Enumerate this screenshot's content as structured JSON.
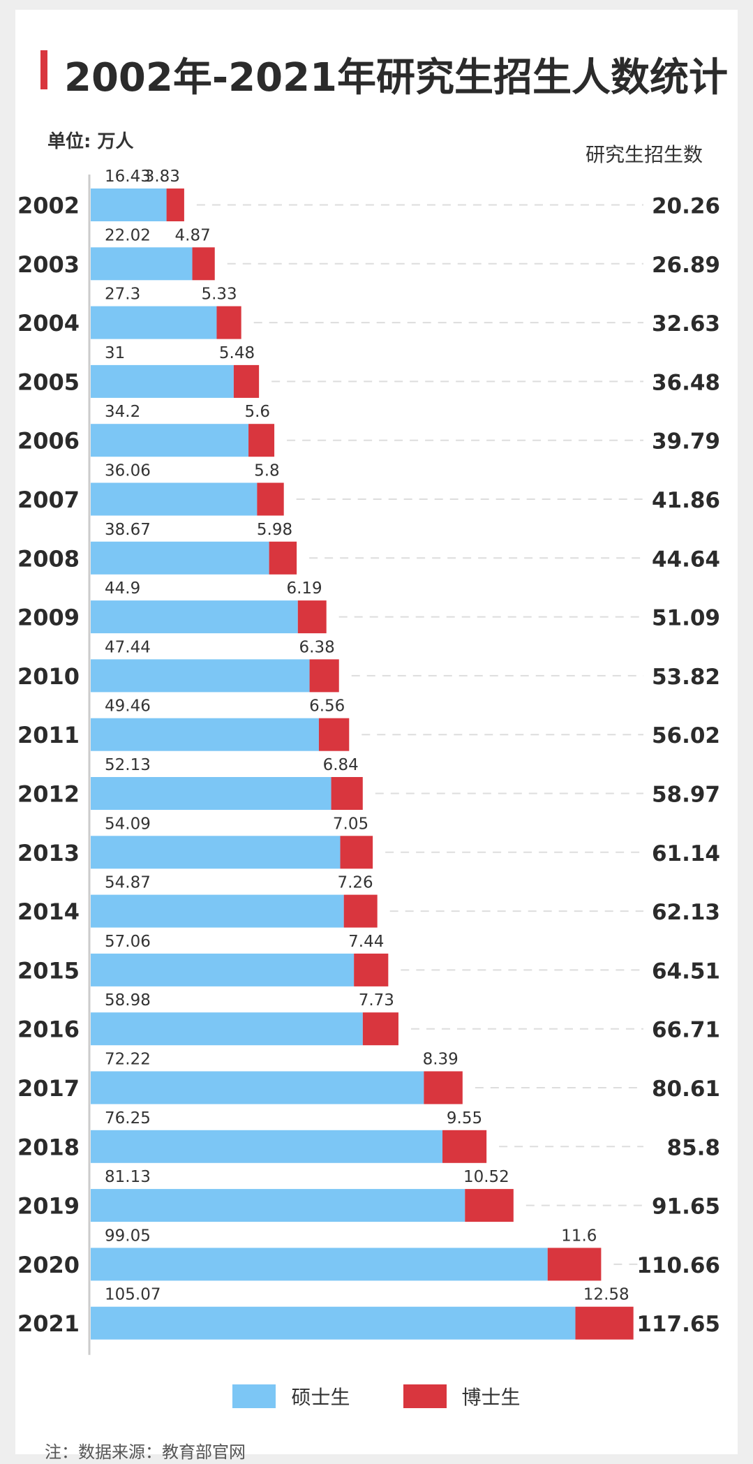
{
  "title": "2002年-2021年研究生招生人数统计",
  "unit_label": "单位: 万人",
  "total_header": "研究生招生数",
  "note": "注：数据来源：教育部官网",
  "colors": {
    "master": "#7cc6f5",
    "doctor": "#d9363e",
    "accent": "#d9363e"
  },
  "chart_data": {
    "type": "bar",
    "orientation": "horizontal",
    "stacked": true,
    "categories": [
      "2002",
      "2003",
      "2004",
      "2005",
      "2006",
      "2007",
      "2008",
      "2009",
      "2010",
      "2011",
      "2012",
      "2013",
      "2014",
      "2015",
      "2016",
      "2017",
      "2018",
      "2019",
      "2020",
      "2021"
    ],
    "series": [
      {
        "name": "硕士生",
        "values": [
          16.43,
          22.02,
          27.3,
          31,
          34.2,
          36.06,
          38.67,
          44.9,
          47.44,
          49.46,
          52.13,
          54.09,
          54.87,
          57.06,
          58.98,
          72.22,
          76.25,
          81.13,
          99.05,
          105.07
        ]
      },
      {
        "name": "博士生",
        "values": [
          3.83,
          4.87,
          5.33,
          5.48,
          5.6,
          5.8,
          5.98,
          6.19,
          6.38,
          6.56,
          6.84,
          7.05,
          7.26,
          7.44,
          7.73,
          8.39,
          9.55,
          10.52,
          11.6,
          12.58
        ]
      }
    ],
    "totals_labels": [
      "20.26",
      "26.89",
      "32.63",
      "36.48",
      "39.79",
      "41.86",
      "44.64",
      "51.09",
      "53.82",
      "56.02",
      "58.97",
      "61.14",
      "62.13",
      "64.51",
      "66.71",
      "80.61",
      "85.8",
      "91.65",
      "110.66",
      "117.65"
    ],
    "master_labels": [
      "16.43",
      "22.02",
      "27.3",
      "31",
      "34.2",
      "36.06",
      "38.67",
      "44.9",
      "47.44",
      "49.46",
      "52.13",
      "54.09",
      "54.87",
      "57.06",
      "58.98",
      "72.22",
      "76.25",
      "81.13",
      "99.05",
      "105.07"
    ],
    "doctor_labels": [
      "3.83",
      "4.87",
      "5.33",
      "5.48",
      "5.6",
      "5.8",
      "5.98",
      "6.19",
      "6.38",
      "6.56",
      "6.84",
      "7.05",
      "7.26",
      "7.44",
      "7.73",
      "8.39",
      "9.55",
      "10.52",
      "11.6",
      "12.58"
    ],
    "legend": "bottom-center",
    "grid": false
  }
}
